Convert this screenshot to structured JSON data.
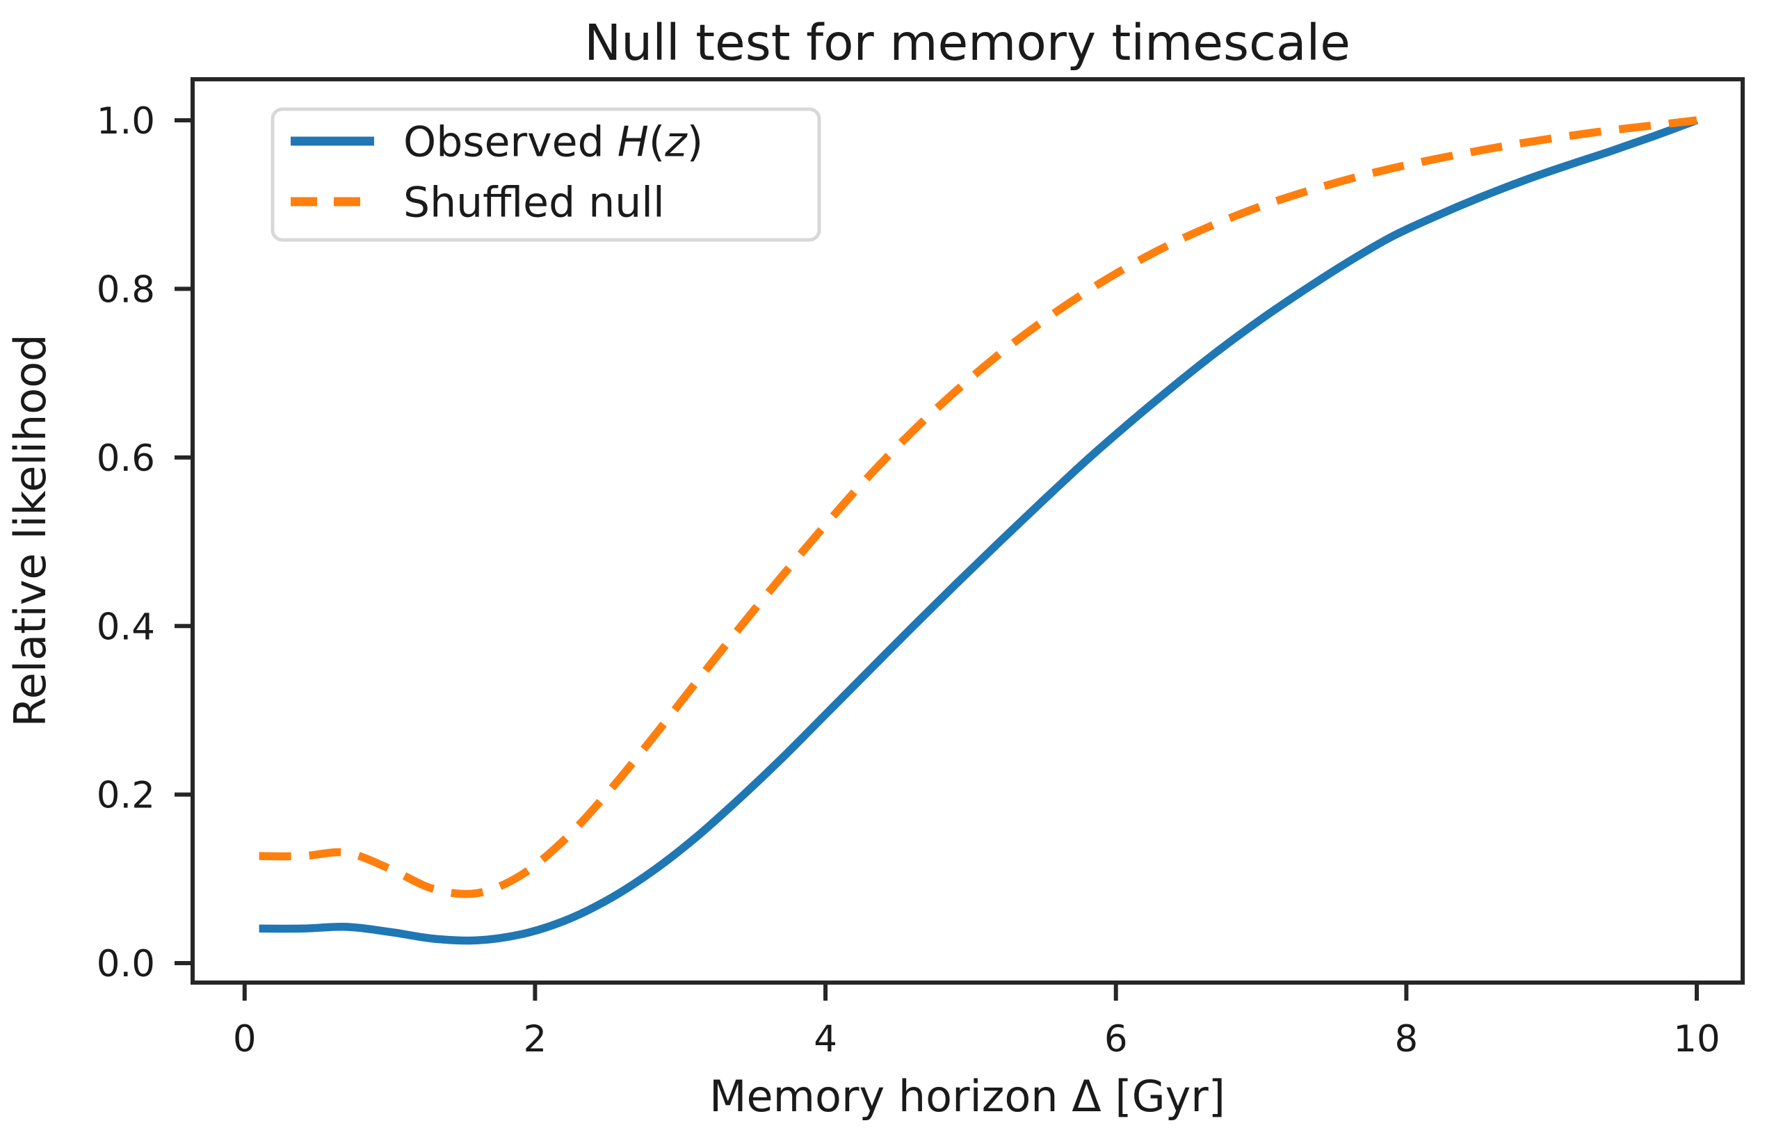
{
  "figure": {
    "background": "#ffffff"
  },
  "chart_data": {
    "type": "line",
    "title": "Null test for memory timescale",
    "xlabel": "Memory horizon Δ [Gyr]",
    "ylabel": "Relative likelihood",
    "xlim": [
      -0.358,
      10.316
    ],
    "ylim": [
      -0.0231,
      1.0487
    ],
    "x_ticks": [
      0,
      2,
      4,
      6,
      8,
      10
    ],
    "x_tick_labels": [
      "0",
      "2",
      "4",
      "6",
      "8",
      "10"
    ],
    "y_ticks": [
      0.0,
      0.2,
      0.4,
      0.6,
      0.8,
      1.0
    ],
    "y_tick_labels": [
      "0.0",
      "0.2",
      "0.4",
      "0.6",
      "0.8",
      "1.0"
    ],
    "grid": false,
    "axis_color": "#262626",
    "text_color": "#1a1a1a",
    "legend": {
      "position": "upper-left",
      "background": "#ffffff",
      "border_color": "#d8d8d8"
    },
    "x": [
      0.1,
      0.4,
      0.7,
      1.0,
      1.3,
      1.6,
      1.9,
      2.2,
      2.5,
      2.8,
      3.1,
      3.4,
      3.7,
      4.0,
      4.3,
      4.6,
      4.9,
      5.2,
      5.5,
      5.8,
      6.1,
      6.4,
      6.7,
      7.0,
      7.3,
      7.6,
      7.9,
      8.2,
      8.5,
      8.8,
      9.1,
      9.4,
      9.7,
      10.0
    ],
    "series": [
      {
        "name": "Observed H(z)",
        "label_parts": [
          {
            "t": "Observed ",
            "i": false
          },
          {
            "t": "H",
            "i": true
          },
          {
            "t": "(",
            "i": false
          },
          {
            "t": "z",
            "i": true
          },
          {
            "t": ")",
            "i": false
          }
        ],
        "color": "#1f77b4",
        "style": "solid",
        "values": [
          0.041,
          0.041,
          0.043,
          0.037,
          0.029,
          0.027,
          0.034,
          0.05,
          0.075,
          0.108,
          0.148,
          0.194,
          0.243,
          0.295,
          0.347,
          0.399,
          0.45,
          0.5,
          0.549,
          0.597,
          0.642,
          0.685,
          0.726,
          0.764,
          0.799,
          0.832,
          0.862,
          0.886,
          0.908,
          0.928,
          0.946,
          0.963,
          0.981,
          1.0
        ]
      },
      {
        "name": "Shuffled null",
        "label_parts": [
          {
            "t": "Shuffled null",
            "i": false
          }
        ],
        "color": "#ff7f0e",
        "style": "dashed",
        "values": [
          0.127,
          0.127,
          0.131,
          0.112,
          0.088,
          0.083,
          0.104,
          0.146,
          0.202,
          0.265,
          0.331,
          0.396,
          0.459,
          0.52,
          0.578,
          0.631,
          0.679,
          0.723,
          0.762,
          0.797,
          0.828,
          0.855,
          0.878,
          0.898,
          0.915,
          0.93,
          0.943,
          0.954,
          0.964,
          0.973,
          0.981,
          0.988,
          0.994,
          1.0
        ]
      }
    ]
  }
}
